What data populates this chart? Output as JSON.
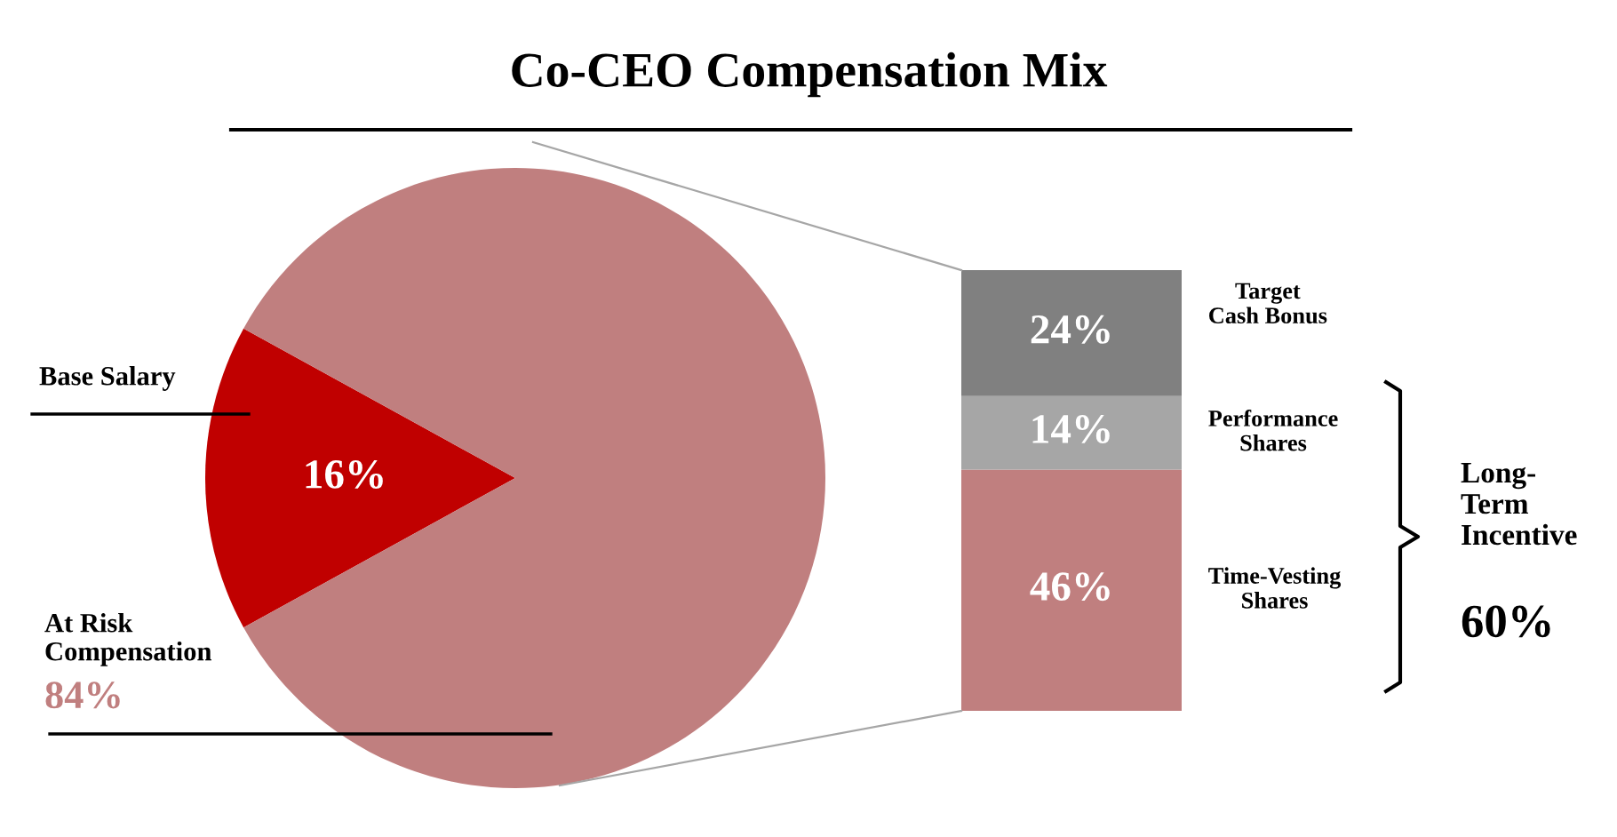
{
  "chart_data": [
    {
      "type": "pie",
      "title": "Co-CEO Compensation Mix",
      "categories": [
        "Base Salary",
        "At Risk\nCompensation"
      ],
      "values": [
        16,
        84
      ],
      "colors": [
        "#c00000",
        "#c07f7f"
      ],
      "value_labels": [
        "16%",
        "84%"
      ]
    },
    {
      "type": "bar",
      "stacked": true,
      "categories": [
        null
      ],
      "series": [
        {
          "name": "Time-Vesting\nShares",
          "color": "#c07f7f",
          "values": [
            46
          ],
          "value_labels": [
            "46%"
          ]
        },
        {
          "name": "Performance\nShares",
          "color": "#a6a6a6",
          "values": [
            14
          ],
          "value_labels": [
            "14%"
          ]
        },
        {
          "name": "Target\nCash Bonus",
          "color": "#808080",
          "values": [
            24
          ],
          "value_labels": [
            "24%"
          ]
        }
      ],
      "annotations": [
        "Long-\nTerm\nIncentive",
        "60%"
      ]
    }
  ]
}
